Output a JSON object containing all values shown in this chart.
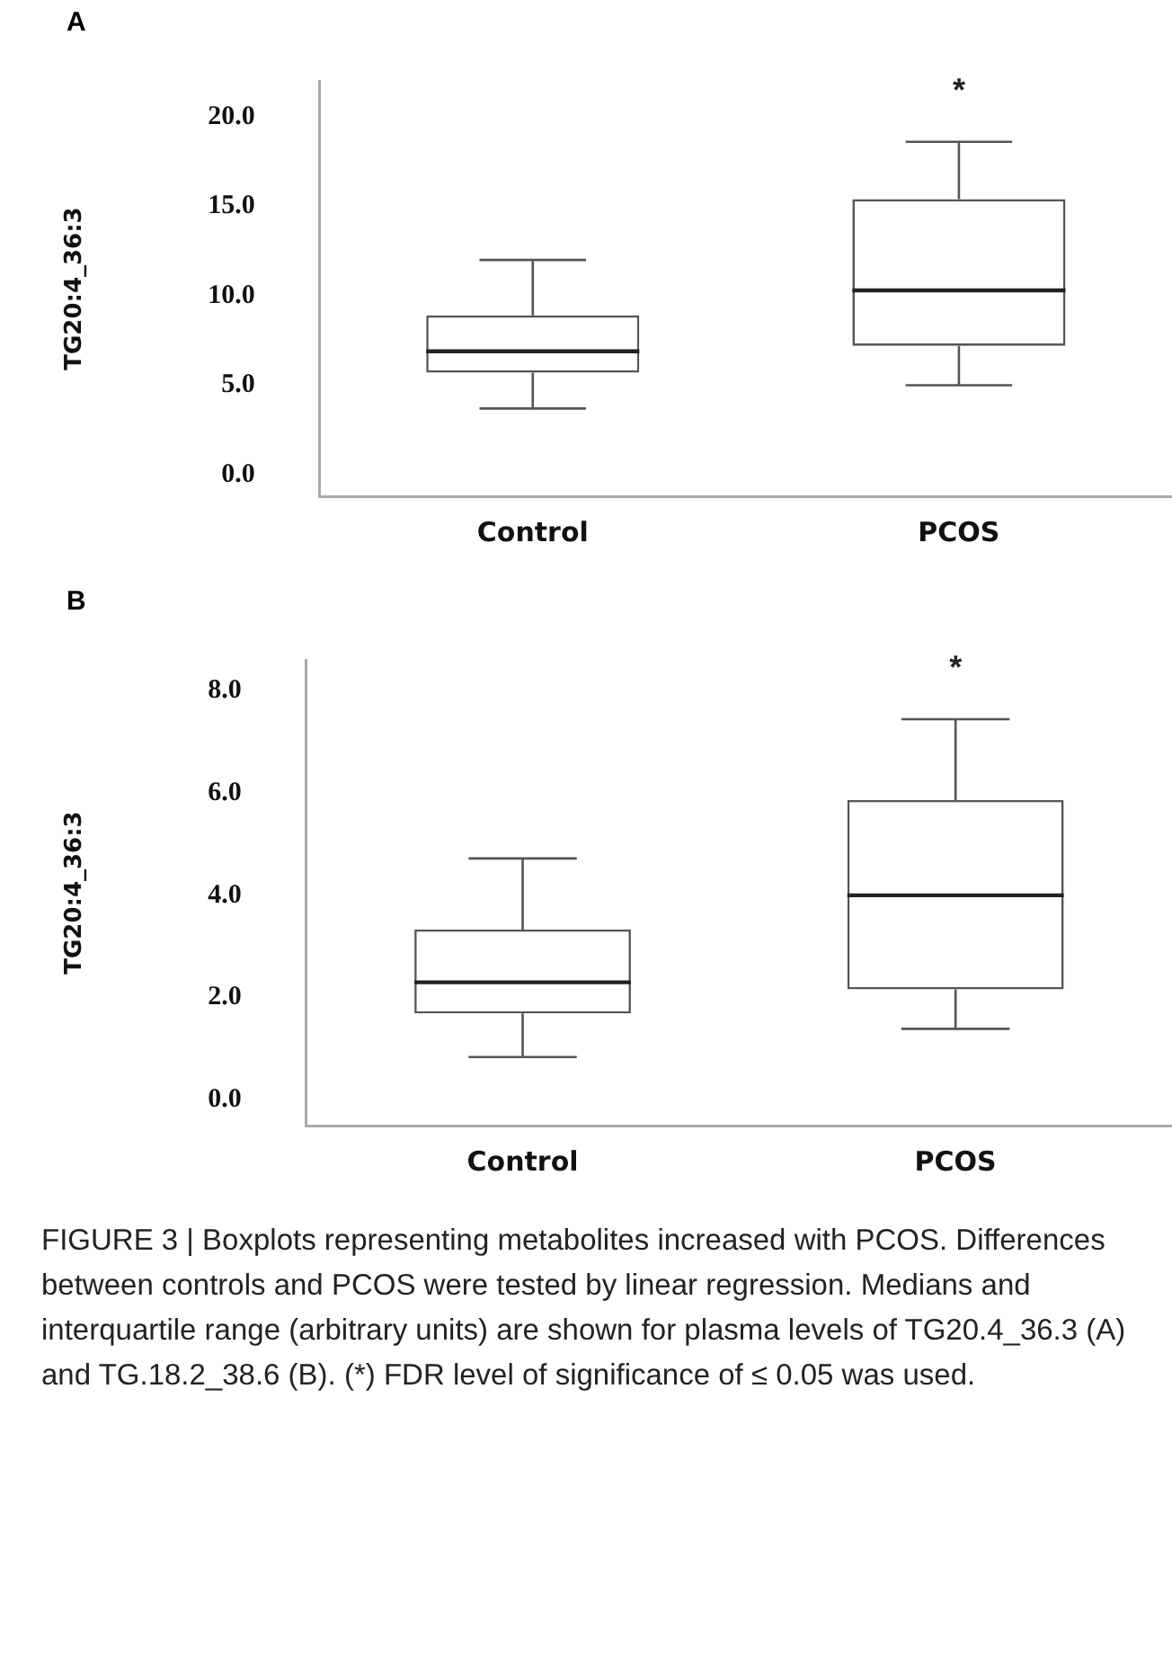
{
  "chart_data": [
    {
      "type": "box",
      "title": "A",
      "ylabel": "TG20:4_36:3",
      "categories": [
        "Control",
        "PCOS"
      ],
      "boxes": [
        {
          "low": 3.7,
          "q1": 5.7,
          "median": 6.9,
          "q3": 8.9,
          "high": 12.0
        },
        {
          "low": 5.0,
          "q1": 7.2,
          "median": 10.3,
          "q3": 15.4,
          "high": 18.6
        }
      ],
      "ylim": [
        -1.2,
        22
      ],
      "yticks": [
        {
          "value": 0,
          "label": "0.0"
        },
        {
          "value": 5,
          "label": "5.0"
        },
        {
          "value": 10,
          "label": "10.0"
        },
        {
          "value": 15,
          "label": "15.0"
        },
        {
          "value": 20,
          "label": "20.0"
        }
      ],
      "grid": false,
      "annotations": [
        "*"
      ]
    },
    {
      "type": "box",
      "title": "B",
      "ylabel": "TG20:4_36:3",
      "categories": [
        "Control",
        "PCOS"
      ],
      "boxes": [
        {
          "low": 0.84,
          "q1": 1.69,
          "median": 2.3,
          "q3": 3.33,
          "high": 4.72
        },
        {
          "low": 1.39,
          "q1": 2.16,
          "median": 4.0,
          "q3": 5.86,
          "high": 7.44
        }
      ],
      "ylim": [
        -0.5,
        8.6
      ],
      "yticks": [
        {
          "value": 0,
          "label": "0.0"
        },
        {
          "value": 2,
          "label": "2.0"
        },
        {
          "value": 4,
          "label": "4.0"
        },
        {
          "value": 6,
          "label": "6.0"
        },
        {
          "value": 8,
          "label": "8.0"
        }
      ],
      "grid": false,
      "annotations": [
        "*",
        "FIGURE 3 | Boxplots representing metabolites increased with PCOS. Differences between controls and PCOS were tested by linear regression. Medians and interquartile range (arbitrary units) are shown for plasma levels of TG20.4_36.3 (A) and TG.18.2_38.6 (B). (*) FDR level of significance of ≤ 0.05 was used."
      ]
    }
  ]
}
